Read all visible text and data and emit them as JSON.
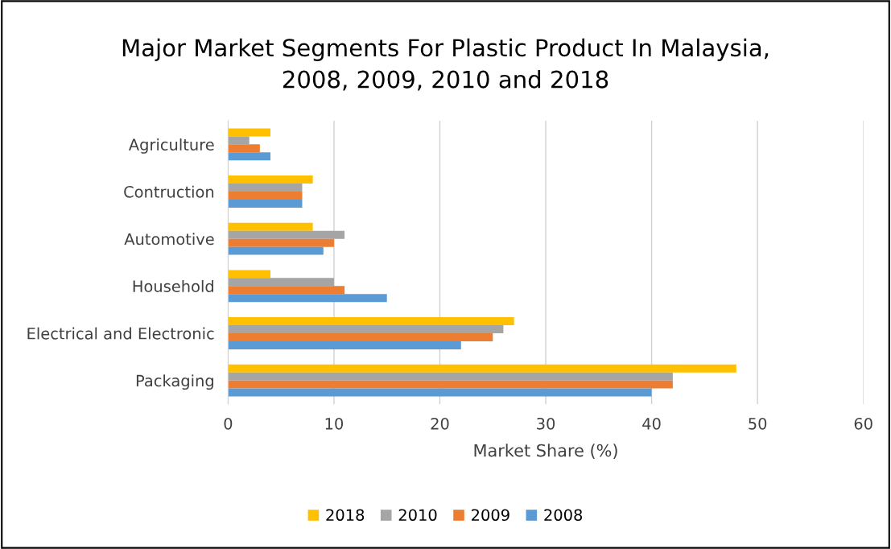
{
  "chart_data": {
    "type": "bar",
    "orientation": "horizontal",
    "title": "Major Market Segments For Plastic Product In Malaysia,\n2008, 2009, 2010 and 2018",
    "xlabel": "Market Share (%)",
    "categories": [
      "Agriculture",
      "Contruction",
      "Automotive",
      "Household",
      "Electrical and Electronic",
      "Packaging"
    ],
    "series": [
      {
        "name": "2018",
        "color": "#ffc000",
        "values": [
          4,
          8,
          8,
          4,
          27,
          48
        ]
      },
      {
        "name": "2010",
        "color": "#a5a5a5",
        "values": [
          2,
          7,
          11,
          10,
          26,
          42
        ]
      },
      {
        "name": "2009",
        "color": "#ed7d31",
        "values": [
          3,
          7,
          10,
          11,
          25,
          42
        ]
      },
      {
        "name": "2008",
        "color": "#5b9bd5",
        "values": [
          4,
          7,
          9,
          15,
          22,
          40
        ]
      }
    ],
    "xlim": [
      0,
      60
    ],
    "xticks": [
      0,
      10,
      20,
      30,
      40,
      50,
      60
    ],
    "grid": "x",
    "legend": "bottom"
  }
}
